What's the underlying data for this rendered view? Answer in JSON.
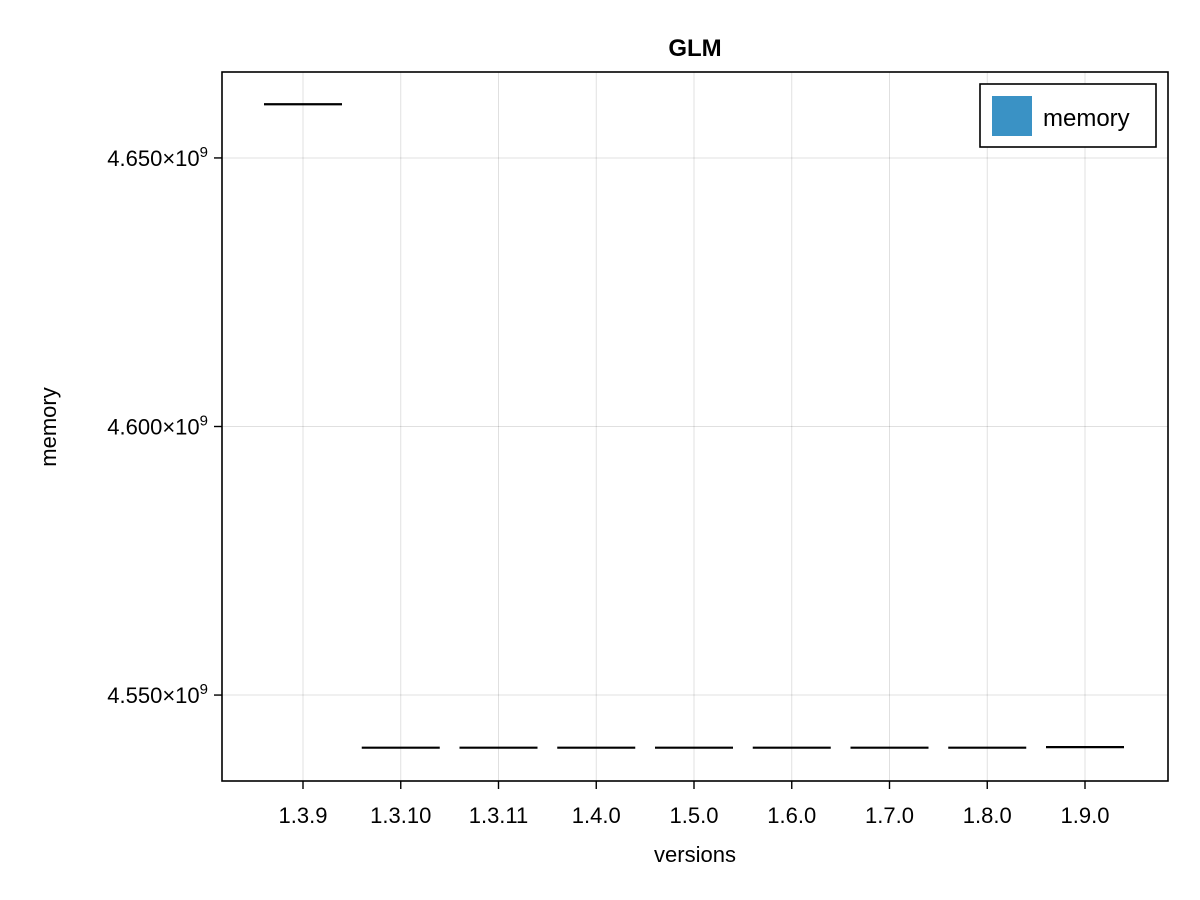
{
  "chart_data": {
    "type": "box",
    "title": "GLM",
    "xlabel": "versions",
    "ylabel": "memory",
    "categories": [
      "1.3.9",
      "1.3.10",
      "1.3.11",
      "1.4.0",
      "1.5.0",
      "1.6.0",
      "1.7.0",
      "1.8.0",
      "1.9.0"
    ],
    "series": [
      {
        "name": "memory",
        "color": "#3a92c5",
        "values": [
          4660000000,
          4540200000,
          4540200000,
          4540200000,
          4540200000,
          4540200000,
          4540200000,
          4540200000,
          4540300000
        ]
      }
    ],
    "ylim": [
      4534000000,
      4666000000
    ],
    "yticks": [
      {
        "value": 4550000000,
        "mantissa": "4.550×10",
        "exp": "9"
      },
      {
        "value": 4600000000,
        "mantissa": "4.600×10",
        "exp": "9"
      },
      {
        "value": 4650000000,
        "mantissa": "4.650×10",
        "exp": "9"
      }
    ],
    "grid": true,
    "legend": {
      "position": "top-right",
      "label": "memory",
      "swatch_color": "#3a92c5"
    }
  }
}
